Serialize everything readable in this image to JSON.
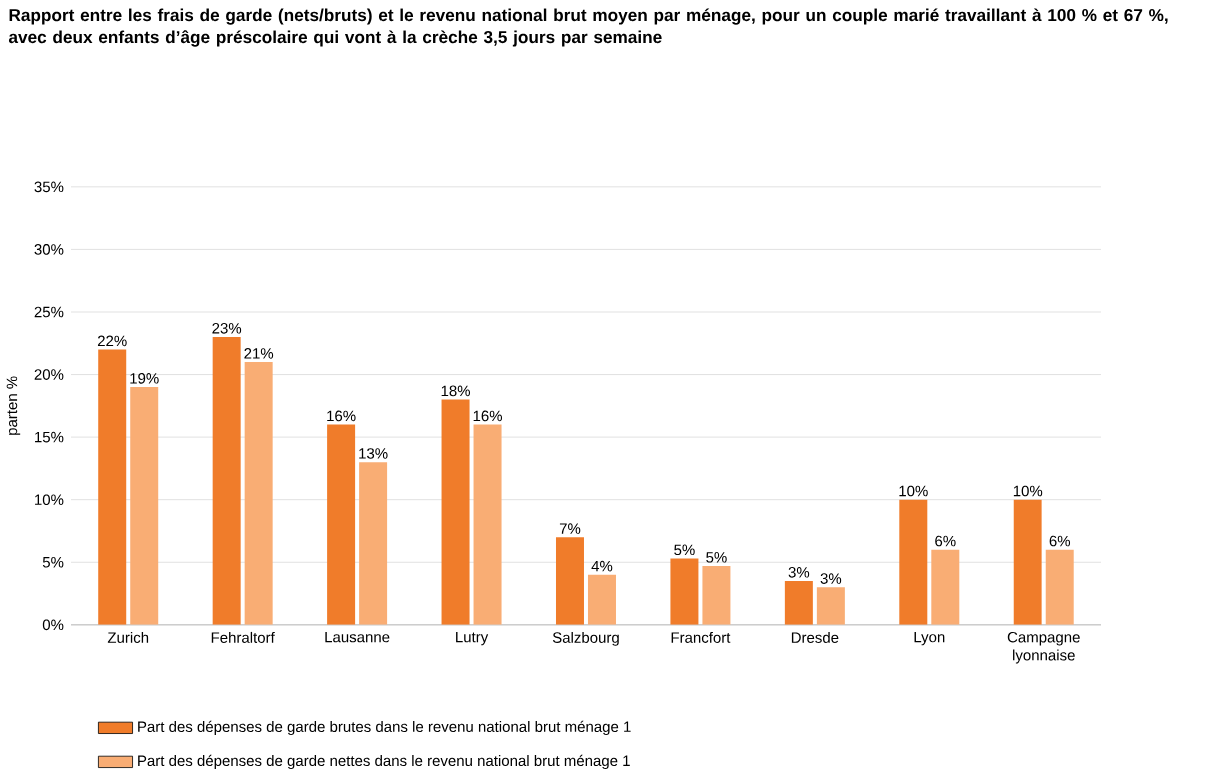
{
  "chart_data": {
    "type": "bar",
    "title": "Rapport entre les frais de garde (nets/bruts) et le revenu national brut moyen par ménage, pour un couple marié travaillant à 100 % et 67 %, avec deux enfants d’âge préscolaire qui vont à la crèche 3,5 jours par semaine",
    "ylabel": "parten %",
    "categories": [
      "Zurich",
      "Fehraltorf",
      "Lausanne",
      "Lutry",
      "Salzbourg",
      "Francfort",
      "Dresde",
      "Lyon",
      "Campagne lyonnaise"
    ],
    "series": [
      {
        "name": "Part des dépenses de garde brutes dans le revenu national brut ménage 1",
        "color": "#f07c2a",
        "values": [
          22,
          23,
          16,
          18,
          7,
          5.3,
          3.5,
          10,
          10
        ],
        "value_labels": [
          "22%",
          "23%",
          "16%",
          "18%",
          "7%",
          "5%",
          "3%",
          "10%",
          "10%"
        ]
      },
      {
        "name": "Part des dépenses de garde nettes dans le revenu national brut ménage 1",
        "color": "#f9ad74",
        "values": [
          19,
          21,
          13,
          16,
          4,
          4.7,
          3,
          6,
          6
        ],
        "value_labels": [
          "19%",
          "21%",
          "13%",
          "16%",
          "4%",
          "5%",
          "3%",
          "6%",
          "6%"
        ]
      }
    ],
    "ylim": [
      0,
      35
    ],
    "yticks": [
      {
        "value": 0,
        "label": "0%"
      },
      {
        "value": 5,
        "label": "5%"
      },
      {
        "value": 10,
        "label": "10%"
      },
      {
        "value": 15,
        "label": "15%"
      },
      {
        "value": 20,
        "label": "20%"
      },
      {
        "value": 25,
        "label": "25%"
      },
      {
        "value": 30,
        "label": "30%"
      },
      {
        "value": 35,
        "label": "35%"
      }
    ],
    "grid": "y",
    "legend": "bottom"
  }
}
